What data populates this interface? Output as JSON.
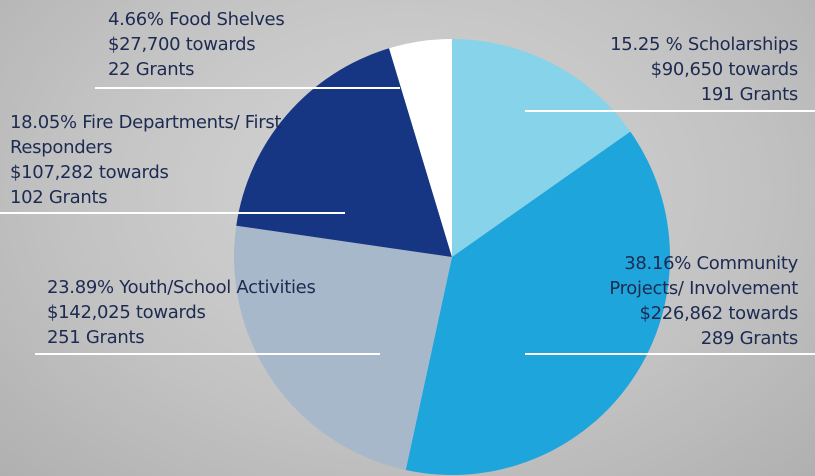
{
  "chart_data": {
    "type": "pie",
    "categories": [
      "Scholarships",
      "Community Projects/ Involvement",
      "Youth/School Activities",
      "Fire Departments/ First Responders",
      "Food Shelves"
    ],
    "values": [
      15.25,
      38.16,
      23.89,
      18.05,
      4.66
    ],
    "value_labels": [
      "15.25 %",
      "38.16%",
      "23.89%",
      "18.05%",
      "4.66%"
    ],
    "details": [
      [
        "$90,650 towards",
        "191 Grants"
      ],
      [
        "$226,862 towards",
        "289 Grants"
      ],
      [
        "$142,025 towards",
        "251 Grants"
      ],
      [
        "$107,282 towards",
        "102 Grants"
      ],
      [
        "$27,700 towards",
        "22 Grants"
      ]
    ],
    "colors": [
      "#87d3ea",
      "#1ea5dc",
      "#a7b8ca",
      "#163684",
      "#ffffff"
    ]
  }
}
